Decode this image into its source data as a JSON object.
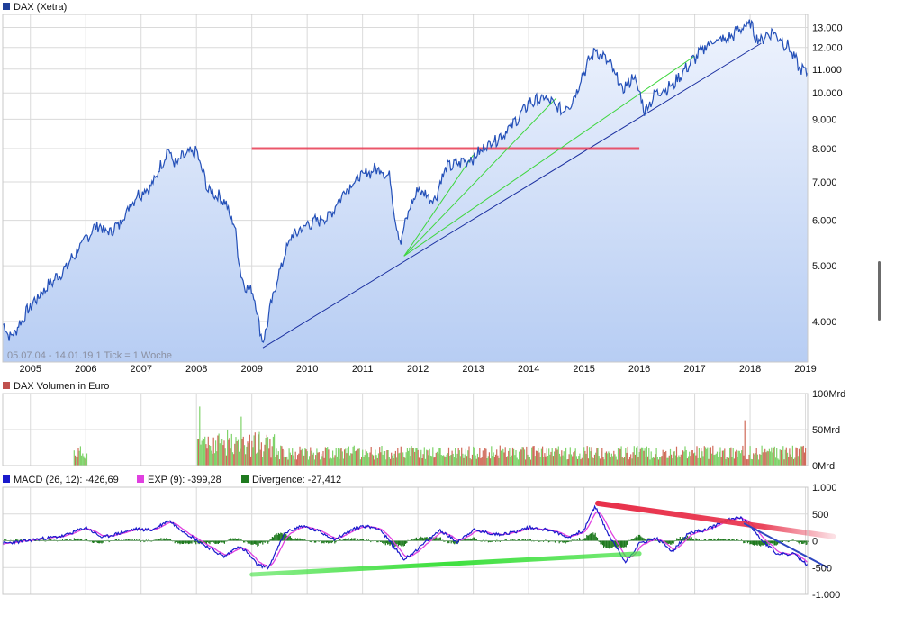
{
  "price_panel": {
    "legend": "DAX (Xetra)",
    "legend_color": "#1f3f99",
    "footnote": "05.07.04 - 14.01.19   1 Tick = 1 Woche"
  },
  "volume_panel": {
    "legend": "DAX Volumen in Euro",
    "legend_color": "#c0504d"
  },
  "macd_panel": {
    "macd_label": "MACD (26, 12): -426,69",
    "macd_color": "#1a1acc",
    "exp_label": "EXP (9): -399,28",
    "exp_color": "#e040e0",
    "div_label": "Divergence: -27,412",
    "div_color": "#1f7a1f"
  },
  "chart_data": [
    {
      "type": "line",
      "title": "DAX (Xetra)",
      "scale": "log",
      "ylim": [
        3400,
        13700
      ],
      "y_ticks": [
        "4.000",
        "5.000",
        "6.000",
        "7.000",
        "8.000",
        "9.000",
        "10.000",
        "11.000",
        "12.000",
        "13.000"
      ],
      "y_tick_values": [
        4000,
        5000,
        6000,
        7000,
        8000,
        9000,
        10000,
        11000,
        12000,
        13000
      ],
      "x_ticks": [
        "2005",
        "2006",
        "2007",
        "2008",
        "2009",
        "2010",
        "2011",
        "2012",
        "2013",
        "2014",
        "2015",
        "2016",
        "2017",
        "2018",
        "2019"
      ],
      "xlim": [
        2004.5,
        2019.04
      ],
      "series": [
        {
          "name": "DAX (Xetra)",
          "x": [
            2004.5,
            2004.65,
            2004.8,
            2005.0,
            2005.3,
            2005.6,
            2005.9,
            2006.2,
            2006.4,
            2006.6,
            2006.9,
            2007.2,
            2007.5,
            2007.6,
            2007.8,
            2008.0,
            2008.2,
            2008.5,
            2008.7,
            2008.8,
            2008.95,
            2009.0,
            2009.2,
            2009.45,
            2009.7,
            2010.0,
            2010.4,
            2010.7,
            2011.0,
            2011.3,
            2011.5,
            2011.6,
            2011.7,
            2011.8,
            2012.0,
            2012.3,
            2012.5,
            2012.8,
            2013.0,
            2013.3,
            2013.5,
            2013.8,
            2014.0,
            2014.3,
            2014.6,
            2014.8,
            2015.0,
            2015.2,
            2015.45,
            2015.7,
            2015.9,
            2016.1,
            2016.3,
            2016.6,
            2016.9,
            2017.0,
            2017.3,
            2017.6,
            2017.8,
            2018.0,
            2018.15,
            2018.4,
            2018.7,
            2018.9,
            2019.0
          ],
          "values": [
            3950,
            3750,
            3950,
            4250,
            4600,
            4900,
            5400,
            5900,
            5700,
            5900,
            6600,
            6900,
            8000,
            7500,
            7800,
            7900,
            6800,
            6500,
            5800,
            4800,
            4500,
            4600,
            3650,
            4700,
            5600,
            5900,
            6100,
            6800,
            7200,
            7400,
            7100,
            5900,
            5500,
            6100,
            6800,
            6500,
            7400,
            7600,
            7700,
            8200,
            8400,
            9000,
            9600,
            9800,
            9300,
            9700,
            10900,
            11900,
            11300,
            10100,
            10700,
            9300,
            10000,
            10300,
            11200,
            11500,
            12300,
            12400,
            12900,
            13200,
            12300,
            12800,
            12000,
            11000,
            10900
          ]
        }
      ],
      "annotations": [
        {
          "type": "trendline",
          "color": "#1a2fa0",
          "from": [
            2009.2,
            3600
          ],
          "to": [
            2018.2,
            12200
          ]
        },
        {
          "type": "horizontal",
          "color": "#e8304a",
          "from": [
            2009.0,
            8000
          ],
          "to": [
            2016.0,
            8000
          ]
        },
        {
          "type": "trendline",
          "color": "#3ed63e",
          "from": [
            2011.75,
            5200
          ],
          "to": [
            2013.0,
            7800
          ]
        },
        {
          "type": "trendline",
          "color": "#3ed63e",
          "from": [
            2011.75,
            5200
          ],
          "to": [
            2014.5,
            9800
          ]
        },
        {
          "type": "trendline",
          "color": "#3ed63e",
          "from": [
            2011.75,
            5200
          ],
          "to": [
            2017.0,
            11600
          ]
        }
      ]
    },
    {
      "type": "bar",
      "title": "DAX Volumen in Euro",
      "ylim": [
        0,
        100
      ],
      "y_unit": "Mrd",
      "y_ticks": [
        "100Mrd",
        "50Mrd",
        "0Mrd"
      ],
      "y_tick_values": [
        100,
        50,
        0
      ],
      "typical_range": [
        8,
        28
      ],
      "spikes": [
        {
          "x": 2008.05,
          "value": 82
        },
        {
          "x": 2008.8,
          "value": 68
        },
        {
          "x": 2017.9,
          "value": 63
        }
      ]
    },
    {
      "type": "line",
      "title": "MACD (26, 12)",
      "ylim": [
        -1000,
        1000
      ],
      "y_ticks": [
        "1.000",
        "500",
        "0",
        "-500",
        "-1.000"
      ],
      "y_tick_values": [
        1000,
        500,
        0,
        -500,
        -1000
      ],
      "series": [
        {
          "name": "MACD (26, 12)",
          "x": [
            2004.5,
            2004.8,
            2005.2,
            2005.6,
            2006.0,
            2006.3,
            2006.6,
            2006.9,
            2007.2,
            2007.5,
            2007.8,
            2008.1,
            2008.5,
            2008.75,
            2008.9,
            2009.1,
            2009.3,
            2009.6,
            2009.9,
            2010.2,
            2010.5,
            2010.8,
            2011.0,
            2011.3,
            2011.6,
            2011.75,
            2012.0,
            2012.4,
            2012.7,
            2013.0,
            2013.4,
            2013.7,
            2014.0,
            2014.4,
            2014.7,
            2015.0,
            2015.2,
            2015.45,
            2015.75,
            2016.0,
            2016.3,
            2016.6,
            2016.9,
            2017.2,
            2017.5,
            2017.8,
            2018.0,
            2018.2,
            2018.5,
            2018.8,
            2019.0
          ],
          "values": [
            -50,
            -20,
            40,
            90,
            250,
            60,
            140,
            220,
            200,
            380,
            150,
            -50,
            -300,
            -100,
            -200,
            -450,
            -500,
            150,
            280,
            180,
            30,
            200,
            280,
            230,
            -150,
            -350,
            -150,
            200,
            -20,
            200,
            120,
            150,
            250,
            200,
            60,
            200,
            650,
            100,
            -400,
            -50,
            50,
            -200,
            150,
            200,
            350,
            450,
            300,
            20,
            -250,
            -250,
            -426.69
          ]
        },
        {
          "name": "EXP (9)",
          "final_value": -399.28
        },
        {
          "name": "Divergence",
          "final_value": -27.412
        }
      ],
      "annotations": [
        {
          "type": "trendline",
          "color": "#e8304a",
          "from": [
            2015.25,
            700
          ],
          "to": [
            2019.5,
            80
          ]
        },
        {
          "type": "trendline",
          "color": "#2e47c0",
          "from": [
            2017.9,
            320
          ],
          "to": [
            2019.4,
            -500
          ]
        },
        {
          "type": "trendline",
          "color": "#3ee03e",
          "from": [
            2009.0,
            -630
          ],
          "to": [
            2016.0,
            -240
          ]
        }
      ]
    }
  ]
}
